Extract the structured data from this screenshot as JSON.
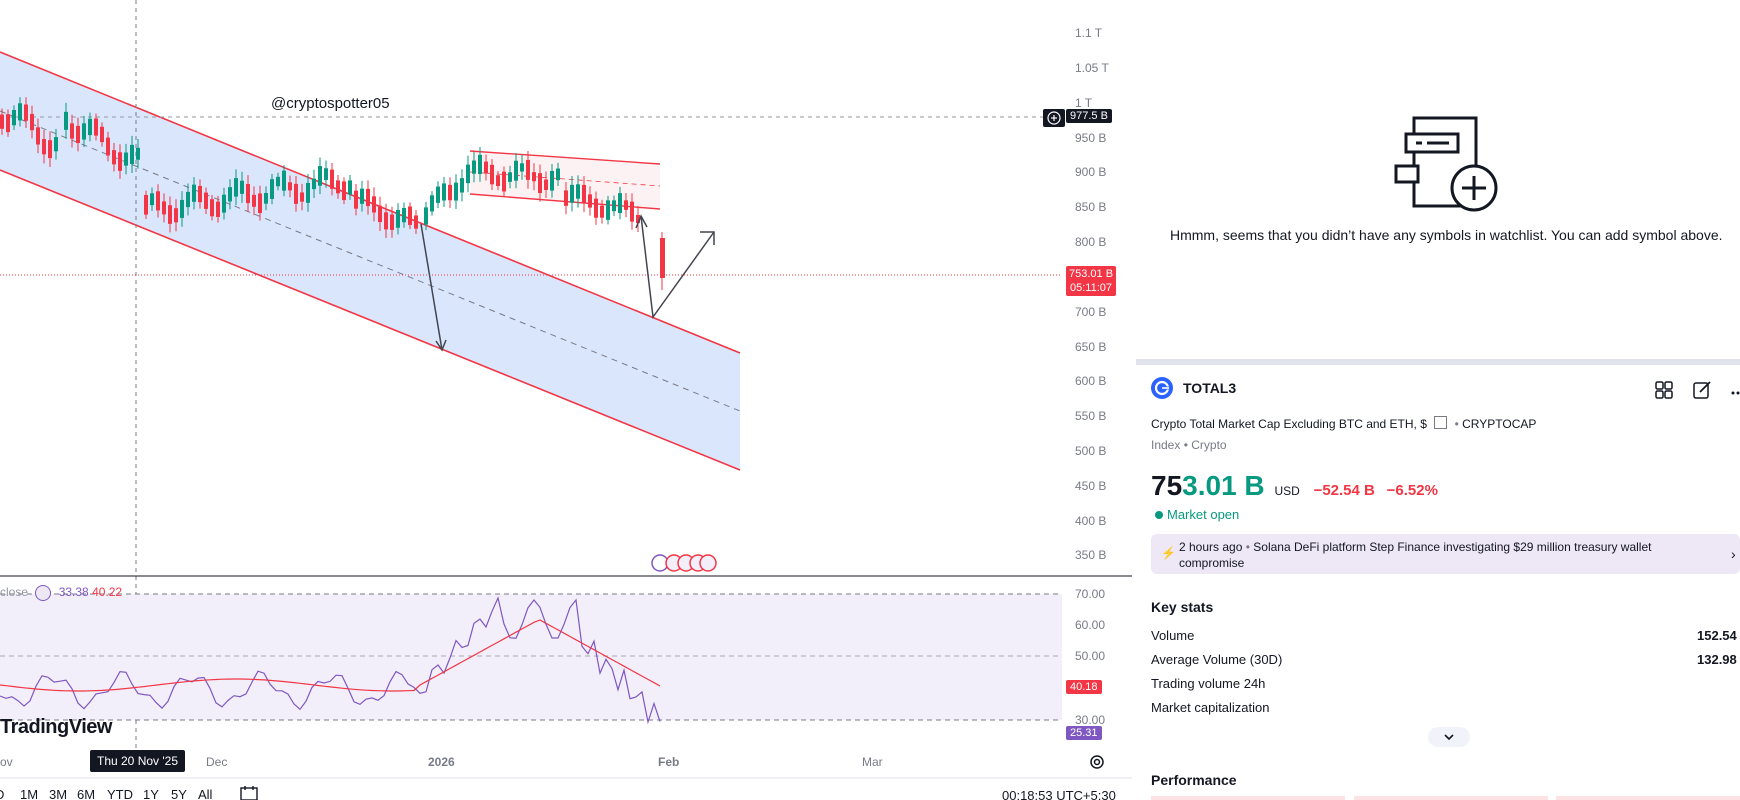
{
  "chart": {
    "watermark_handle": "@cryptospotter05",
    "logo_text": "TradingView",
    "price_scale": [
      "1.1 T",
      "1.05 T",
      "1 T",
      "950 B",
      "900 B",
      "850 B",
      "800 B",
      "700 B",
      "650 B",
      "600 B",
      "550 B",
      "500 B",
      "450 B",
      "400 B",
      "350 B"
    ],
    "crosshair_price": "977.5 B",
    "last_price": "753.01 B",
    "countdown": "05:11:07",
    "time_axis": {
      "nov": "ov",
      "dec": "Dec",
      "y2026": "2026",
      "feb": "Feb",
      "mar": "Mar"
    },
    "crosshair_date": "Thu 20 Nov '25",
    "clock": "00:18:53 UTC+5:30",
    "period_buttons": [
      "D",
      "1M",
      "3M",
      "6M",
      "YTD",
      "1Y",
      "5Y",
      "All"
    ]
  },
  "rsi": {
    "legend_label": "close",
    "value1": "33.38",
    "value2": "40.22",
    "levels": [
      "70.00",
      "60.00",
      "50.00",
      "30.00"
    ],
    "tag_ma": "40.18",
    "tag_rsi": "25.31",
    "colors": {
      "rsi": "#7e57c2",
      "ma": "#f23645",
      "band": "#f3effa"
    }
  },
  "watchlist": {
    "empty_message": "Hmmm, seems that you didn’t have any symbols in watchlist. You can add symbol above."
  },
  "symbol": {
    "ticker": "TOTAL3",
    "full_name": "Crypto Total Market Cap Excluding BTC and ETH, $",
    "exchange": "CRYPTOCAP",
    "type": "Index",
    "category": "Crypto",
    "price_main": "75",
    "price_tail": "3.01 B",
    "currency": "USD",
    "change": "−52.54 B",
    "change_pct": "−6.52%",
    "market_status": "Market open",
    "colors": {
      "up": "#089981",
      "down": "#f23645",
      "accent": "#2962ff"
    }
  },
  "news": {
    "time": "2 hours ago",
    "headline_line1": "Solana DeFi platform Step Finance investigating $29 million treasury wallet",
    "headline_line2": "compromise"
  },
  "key_stats": {
    "title": "Key stats",
    "rows": [
      {
        "label": "Volume",
        "value": "152.54"
      },
      {
        "label": "Average Volume (30D)",
        "value": "132.98"
      },
      {
        "label": "Trading volume 24h",
        "value": ""
      },
      {
        "label": "Market capitalization",
        "value": ""
      }
    ]
  },
  "performance": {
    "title": "Performance"
  },
  "icons": [
    "add-symbol-icon",
    "grid-icon",
    "edit-icon",
    "more-icon",
    "lightning-icon",
    "chevron-right-icon",
    "chevron-down-icon",
    "settings-icon",
    "calendar-icon",
    "plus-circle-icon",
    "rsi-source-icon",
    "event-flags-icon"
  ]
}
